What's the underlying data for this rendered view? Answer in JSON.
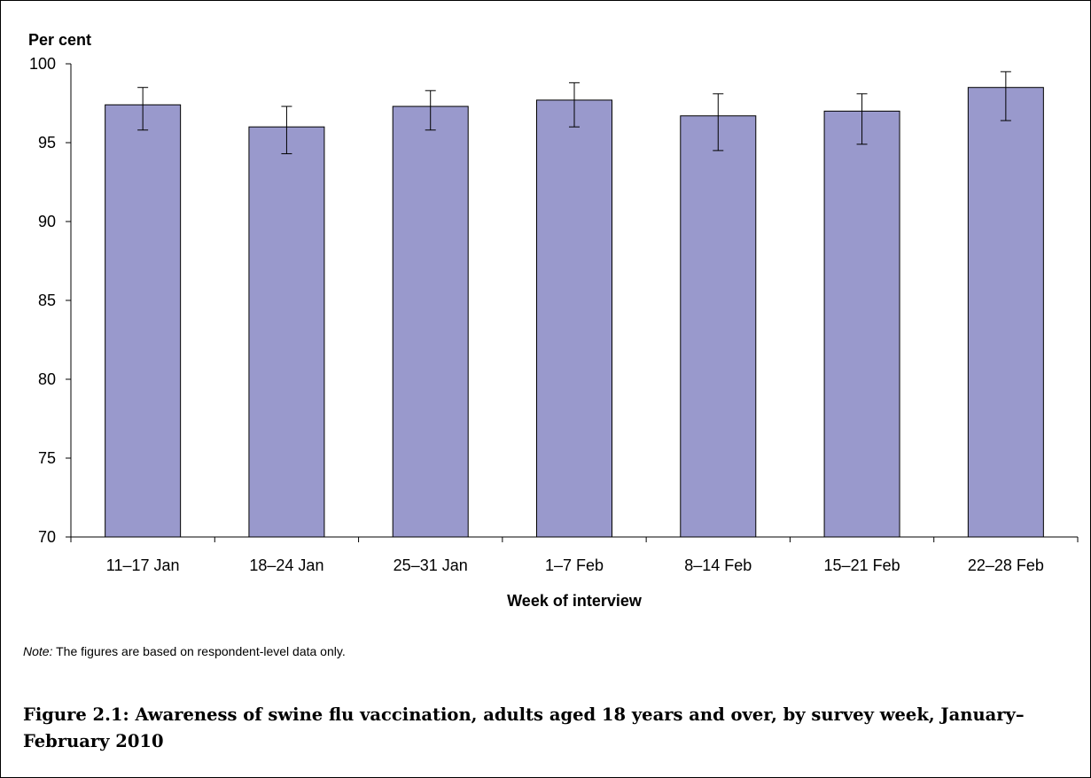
{
  "chart_data": {
    "type": "bar",
    "ylabel": "Per cent",
    "xlabel": "Week of interview",
    "categories": [
      "11–17 Jan",
      "18–24 Jan",
      "25–31 Jan",
      "1–7 Feb",
      "8–14 Feb",
      "15–21 Feb",
      "22–28 Feb"
    ],
    "values": [
      97.4,
      96.0,
      97.3,
      97.7,
      96.7,
      97.0,
      98.5
    ],
    "error_low": [
      95.8,
      94.3,
      95.8,
      96.0,
      94.5,
      94.9,
      96.4
    ],
    "error_high": [
      98.5,
      97.3,
      98.3,
      98.8,
      98.1,
      98.1,
      99.5
    ],
    "ylim": [
      70,
      100
    ],
    "yticks": [
      "70",
      "75",
      "80",
      "85",
      "90",
      "95",
      "100"
    ],
    "grid": false,
    "bar_color": "#9999CC"
  },
  "note": {
    "label": "Note:",
    "text": " The figures are based on respondent-level data only."
  },
  "caption": "Figure 2.1: Awareness of swine flu vaccination, adults aged 18 years and over, by survey week, January–February 2010"
}
